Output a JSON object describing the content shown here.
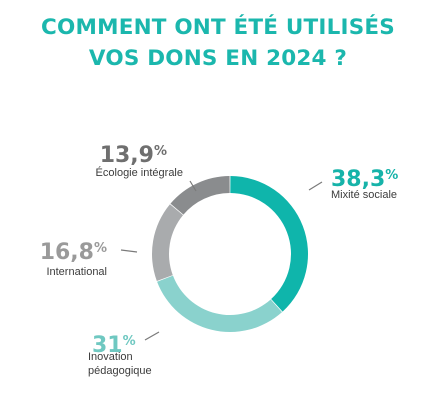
{
  "title": {
    "line1": "COMMENT ONT ÉTÉ UTILISÉS",
    "line2": "VOS DONS EN 2024 ?"
  },
  "colors": {
    "title": "#1bb7ad",
    "leader": "#7a7a7a"
  },
  "chart_data": {
    "type": "pie",
    "variant": "donut",
    "legend": "none",
    "slices": [
      {
        "key": "mixite",
        "label": [
          "Mixité sociale"
        ],
        "number": "38,3",
        "unit": "%",
        "value": 38.3,
        "color": "#0fb5ab",
        "numberColor": "#16b3a9",
        "labelColor": "#3c3c3c",
        "anchor": "start"
      },
      {
        "key": "innovation",
        "label": [
          "Inovation",
          "pédagogique"
        ],
        "number": "31",
        "unit": "%",
        "value": 31,
        "color": "#8ad2cd",
        "numberColor": "#6fc8c1",
        "labelColor": "#3c3c3c",
        "anchor": "start"
      },
      {
        "key": "international",
        "label": [
          "International"
        ],
        "number": "16,8",
        "unit": "%",
        "value": 16.8,
        "color": "#a9abad",
        "numberColor": "#9a9a9a",
        "labelColor": "#3c3c3c",
        "anchor": "end"
      },
      {
        "key": "ecologie",
        "label": [
          "Écologie intégrale"
        ],
        "number": "13,9",
        "unit": "%",
        "value": 13.9,
        "color": "#8a8c8e",
        "numberColor": "#6f6f6f",
        "labelColor": "#3c3c3c",
        "anchor": "end"
      }
    ]
  }
}
